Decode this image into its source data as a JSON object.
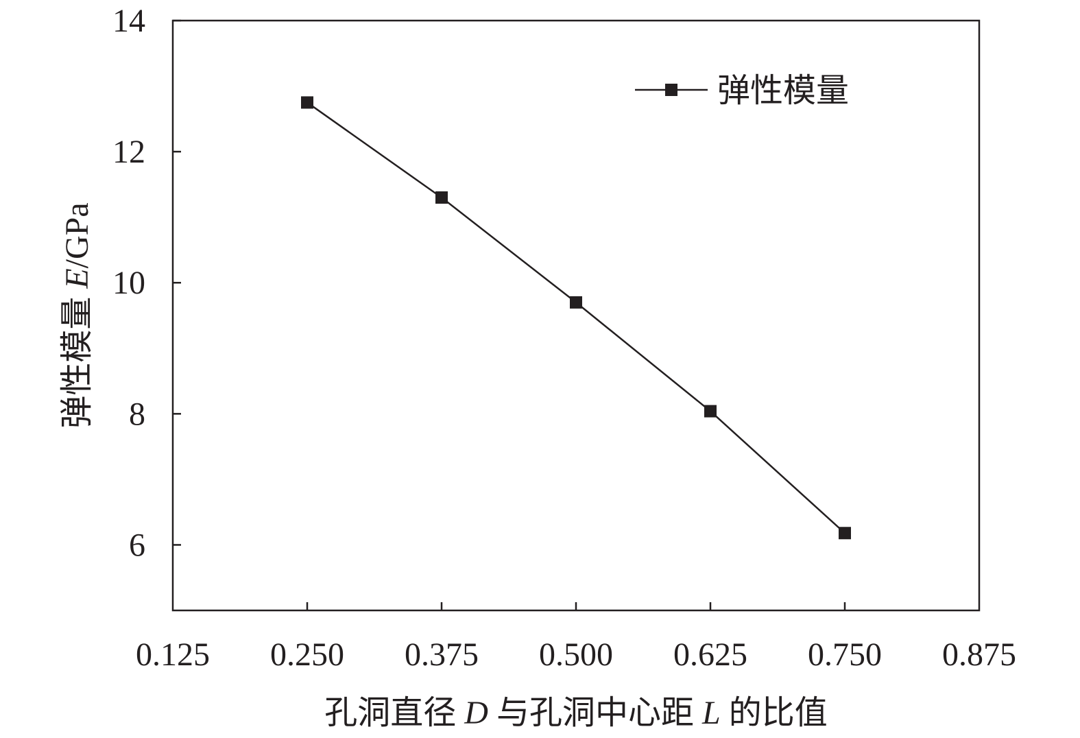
{
  "chart_data": {
    "type": "line",
    "title": "",
    "xlabel_parts": [
      "孔洞直径 ",
      "D",
      " 与孔洞中心距 ",
      "L",
      " 的比值"
    ],
    "ylabel_parts": [
      "弹性模量 ",
      "E",
      "/GPa"
    ],
    "xlim": [
      0.125,
      0.875
    ],
    "ylim": [
      5,
      14
    ],
    "xticks": [
      "0.125",
      "0.250",
      "0.375",
      "0.500",
      "0.625",
      "0.750",
      "0.875"
    ],
    "xtick_values": [
      0.125,
      0.25,
      0.375,
      0.5,
      0.625,
      0.75,
      0.875
    ],
    "yticks": [
      "6",
      "8",
      "10",
      "12",
      "14"
    ],
    "ytick_values": [
      6,
      8,
      10,
      12,
      14
    ],
    "grid": false,
    "legend_position": "top-right",
    "series": [
      {
        "name": "弹性模量",
        "marker": "square",
        "color": "#231f20",
        "x": [
          0.25,
          0.375,
          0.5,
          0.625,
          0.75
        ],
        "values": [
          12.75,
          11.3,
          9.7,
          8.04,
          6.18
        ]
      }
    ]
  }
}
